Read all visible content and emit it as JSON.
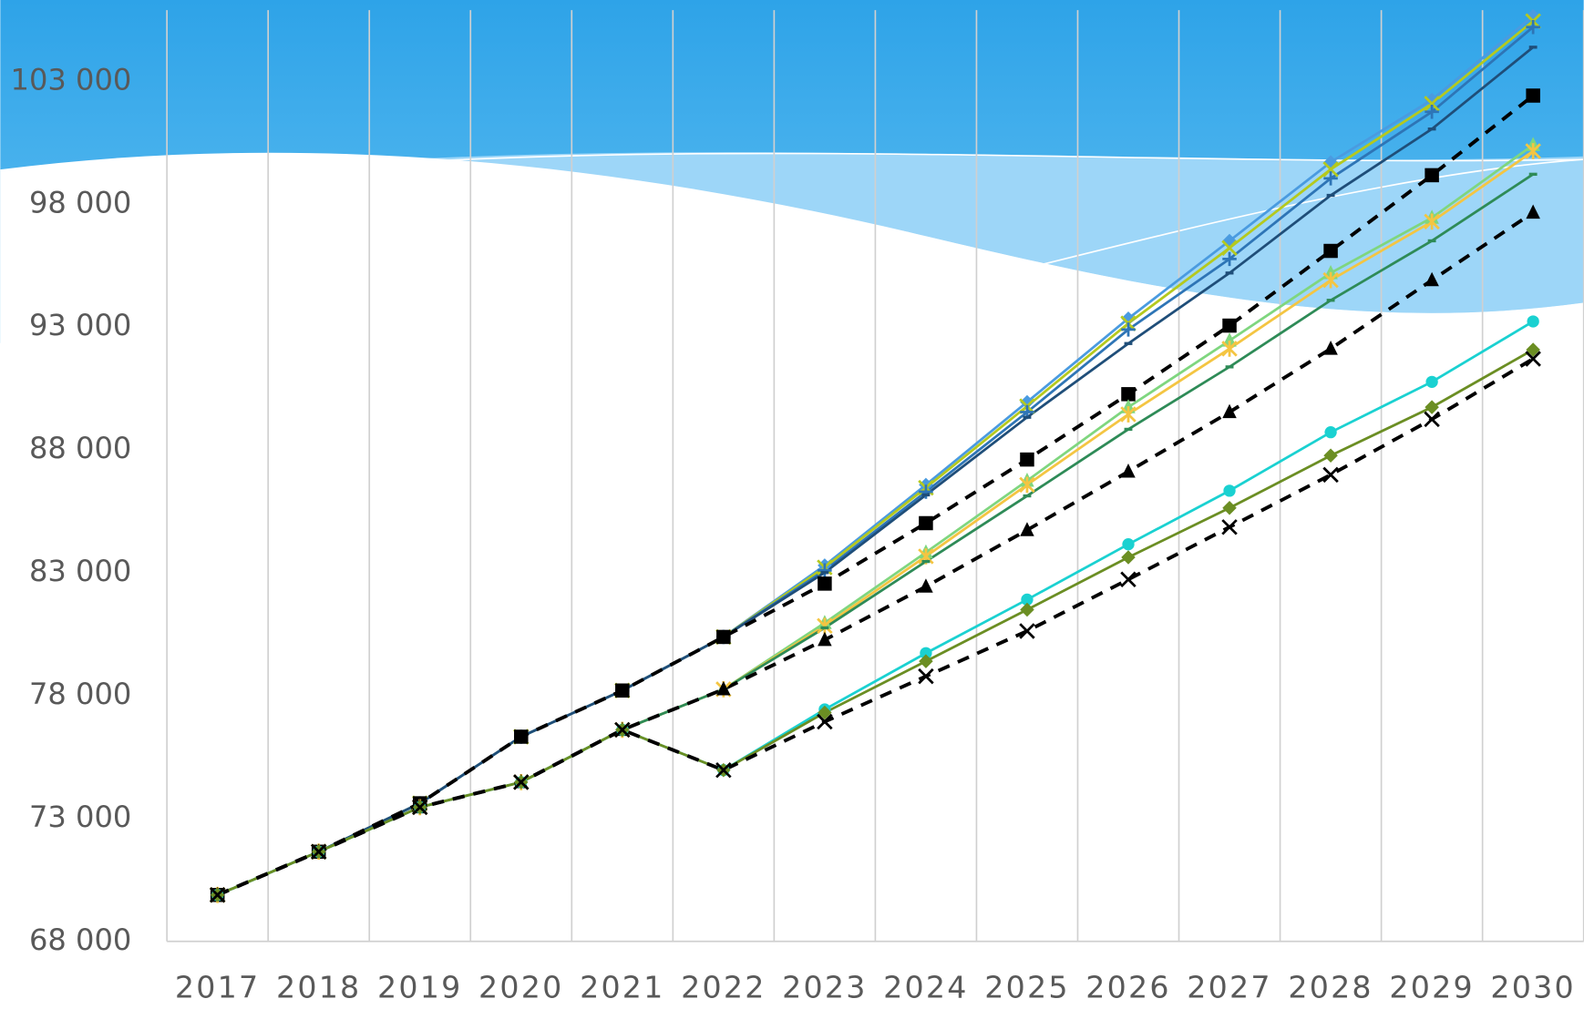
{
  "chart_data": {
    "type": "line",
    "categories": [
      "2017",
      "2018",
      "2019",
      "2020",
      "2021",
      "2022",
      "2023",
      "2024",
      "2025",
      "2026",
      "2027",
      "2028",
      "2029",
      "2030"
    ],
    "ylim": [
      68000,
      105900
    ],
    "yticks": [
      {
        "value": 68000,
        "label": "68 000"
      },
      {
        "value": 73000,
        "label": "73 000"
      },
      {
        "value": 78000,
        "label": "78 000"
      },
      {
        "value": 83000,
        "label": "83 000"
      },
      {
        "value": 88000,
        "label": "88 000"
      },
      {
        "value": 93000,
        "label": "93 000"
      },
      {
        "value": 98000,
        "label": "98 000"
      },
      {
        "value": 103000,
        "label": "103 000"
      }
    ],
    "grid": "vertical",
    "series": [
      {
        "color": "#4a9be0",
        "marker": "diamond",
        "dashed": false,
        "values": [
          69890,
          71650,
          73620,
          76330,
          78210,
          80390,
          83300,
          86580,
          89950,
          93350,
          96510,
          99710,
          102250,
          105660
        ]
      },
      {
        "color": "#b5c91e",
        "marker": "x",
        "dashed": false,
        "values": [
          69890,
          71650,
          73620,
          76330,
          78210,
          80390,
          83220,
          86460,
          89780,
          93150,
          96220,
          99420,
          102090,
          105450
        ]
      },
      {
        "color": "#2e75b6",
        "marker": "plus",
        "dashed": false,
        "values": [
          69890,
          71650,
          73620,
          76330,
          78210,
          80390,
          83100,
          86300,
          89540,
          92900,
          95770,
          99050,
          101760,
          105210
        ]
      },
      {
        "color": "#1f4e79",
        "marker": "dash",
        "dashed": false,
        "values": [
          69890,
          71650,
          73620,
          76330,
          78210,
          80390,
          83010,
          86170,
          89330,
          92330,
          95200,
          98360,
          101060,
          104390
        ]
      },
      {
        "color": "#000000",
        "marker": "square",
        "dashed": true,
        "values": [
          69890,
          71650,
          73620,
          76330,
          78210,
          80390,
          82560,
          85020,
          87610,
          90270,
          93060,
          96100,
          99180,
          102420
        ]
      },
      {
        "color": "#7fd67f",
        "marker": "triangle",
        "dashed": false,
        "values": [
          69890,
          71650,
          73460,
          74480,
          76610,
          78260,
          80960,
          83830,
          86750,
          89740,
          92450,
          95200,
          97450,
          100410
        ]
      },
      {
        "color": "#f4c542",
        "marker": "star",
        "dashed": false,
        "values": [
          69890,
          71650,
          73460,
          74480,
          76610,
          78260,
          80840,
          83670,
          86580,
          89450,
          92120,
          94910,
          97290,
          100160
        ]
      },
      {
        "color": "#2e8b57",
        "marker": "dash",
        "dashed": false,
        "values": [
          69890,
          71650,
          73460,
          74480,
          76610,
          78260,
          80760,
          83460,
          86130,
          88840,
          91380,
          94090,
          96510,
          99220
        ]
      },
      {
        "color": "#000000",
        "marker": "triangle",
        "dashed": true,
        "values": [
          69890,
          71650,
          73460,
          74480,
          76610,
          78260,
          80270,
          82440,
          84740,
          87120,
          89540,
          92120,
          94910,
          97660
        ]
      },
      {
        "color": "#1ad1d1",
        "marker": "circle",
        "dashed": false,
        "values": [
          69890,
          71650,
          73460,
          74480,
          76610,
          74970,
          77440,
          79730,
          81910,
          84160,
          86340,
          88720,
          90770,
          93230
        ]
      },
      {
        "color": "#6b8e23",
        "marker": "diamond",
        "dashed": false,
        "values": [
          69890,
          71650,
          73460,
          74480,
          76610,
          74970,
          77310,
          79400,
          81500,
          83630,
          85640,
          87770,
          89740,
          92080
        ]
      },
      {
        "color": "#000000",
        "marker": "x",
        "dashed": true,
        "values": [
          69890,
          71650,
          73460,
          74480,
          76610,
          74970,
          76940,
          78790,
          80630,
          82730,
          84860,
          86990,
          89250,
          91710
        ]
      }
    ]
  }
}
